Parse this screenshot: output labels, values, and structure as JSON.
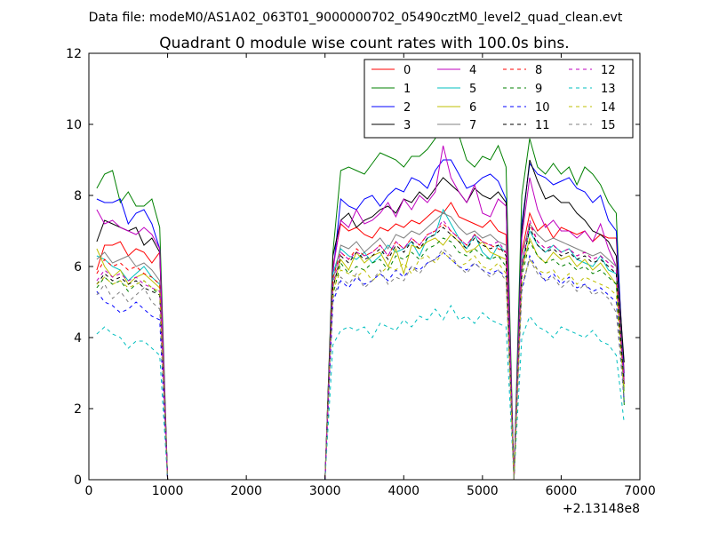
{
  "figure": {
    "suptitle": "Data file: modeM0/AS1A02_063T01_9000000702_05490cztM0_level2_quad_clean.evt",
    "x_offset_label": "+2.13148e8"
  },
  "chart_data": {
    "type": "line",
    "title": "Quadrant 0 module wise count rates with 100.0s bins.",
    "xlabel": "",
    "ylabel": "",
    "xlim": [
      0,
      7000
    ],
    "ylim": [
      0,
      12
    ],
    "xticks": [
      0,
      1000,
      2000,
      3000,
      4000,
      5000,
      6000,
      7000
    ],
    "yticks": [
      0,
      2,
      4,
      6,
      8,
      10,
      12
    ],
    "grid": false,
    "legend": "top-right",
    "x": [
      100,
      200,
      300,
      400,
      500,
      600,
      700,
      800,
      900,
      1000,
      1100,
      1200,
      1300,
      1400,
      1500,
      1600,
      1700,
      1800,
      1900,
      2000,
      2100,
      2200,
      2300,
      2400,
      2500,
      2600,
      2700,
      2800,
      2900,
      3000,
      3100,
      3200,
      3300,
      3400,
      3500,
      3600,
      3700,
      3800,
      3900,
      4000,
      4100,
      4200,
      4300,
      4400,
      4500,
      4600,
      4700,
      4800,
      4900,
      5000,
      5100,
      5200,
      5300,
      5400,
      5500,
      5600,
      5700,
      5800,
      5900,
      6000,
      6100,
      6200,
      6300,
      6400,
      6500,
      6600,
      6700,
      6800
    ],
    "series": [
      {
        "name": "0",
        "color": "#ff0000",
        "dash": false,
        "values": [
          5.9,
          6.6,
          6.6,
          6.7,
          6.3,
          6.5,
          6.4,
          6.1,
          6.4,
          0,
          0,
          0,
          0,
          0,
          0,
          0,
          0,
          0,
          0,
          0,
          0,
          0,
          0,
          0,
          0,
          0,
          0,
          0,
          0,
          0,
          6.0,
          7.2,
          7.0,
          7.1,
          6.9,
          6.8,
          7.1,
          7.0,
          7.2,
          7.1,
          7.3,
          7.2,
          7.4,
          7.6,
          7.5,
          7.8,
          7.4,
          7.3,
          7.2,
          7.1,
          7.3,
          7.0,
          6.9,
          0,
          6.4,
          7.5,
          7.0,
          7.2,
          6.8,
          7.1,
          7.0,
          6.9,
          7.0,
          6.7,
          6.9,
          6.8,
          6.8,
          3.0
        ]
      },
      {
        "name": "1",
        "color": "#008000",
        "dash": false,
        "values": [
          8.2,
          8.6,
          8.7,
          7.8,
          8.1,
          7.7,
          7.7,
          7.9,
          7.1,
          0,
          0,
          0,
          0,
          0,
          0,
          0,
          0,
          0,
          0,
          0,
          0,
          0,
          0,
          0,
          0,
          0,
          0,
          0,
          0,
          0,
          6.4,
          8.7,
          8.8,
          8.7,
          8.6,
          8.9,
          9.2,
          9.1,
          9.0,
          8.8,
          9.1,
          9.1,
          9.3,
          9.6,
          10.7,
          10.3,
          9.7,
          9.0,
          8.8,
          9.1,
          9.0,
          9.4,
          8.8,
          0,
          8.0,
          9.6,
          8.8,
          8.6,
          8.9,
          8.6,
          8.8,
          8.3,
          8.8,
          8.6,
          8.3,
          7.8,
          7.5,
          2.1
        ]
      },
      {
        "name": "2",
        "color": "#0000ff",
        "dash": false,
        "values": [
          7.9,
          7.8,
          7.8,
          7.9,
          7.2,
          7.5,
          7.6,
          7.2,
          6.5,
          0,
          0,
          0,
          0,
          0,
          0,
          0,
          0,
          0,
          0,
          0,
          0,
          0,
          0,
          0,
          0,
          0,
          0,
          0,
          0,
          0,
          5.8,
          7.9,
          7.7,
          7.6,
          7.9,
          8.0,
          7.7,
          8.0,
          8.2,
          8.1,
          8.5,
          8.4,
          8.2,
          8.7,
          9.0,
          9.0,
          8.6,
          8.2,
          8.3,
          8.5,
          8.6,
          8.4,
          7.9,
          0,
          7.2,
          8.9,
          8.6,
          8.5,
          8.3,
          8.4,
          8.5,
          8.2,
          8.1,
          7.8,
          8.0,
          7.3,
          7.0,
          2.9
        ]
      },
      {
        "name": "3",
        "color": "#000000",
        "dash": false,
        "values": [
          6.7,
          7.3,
          7.2,
          7.1,
          7.0,
          7.1,
          6.6,
          6.8,
          6.4,
          0,
          0,
          0,
          0,
          0,
          0,
          0,
          0,
          0,
          0,
          0,
          0,
          0,
          0,
          0,
          0,
          0,
          0,
          0,
          0,
          0,
          6.3,
          7.3,
          7.5,
          7.1,
          7.3,
          7.4,
          7.6,
          7.7,
          7.5,
          7.9,
          7.8,
          8.1,
          7.9,
          8.2,
          8.5,
          8.3,
          8.1,
          7.8,
          8.2,
          8.0,
          7.9,
          8.1,
          7.8,
          0,
          7.0,
          9.0,
          8.4,
          7.9,
          8.0,
          7.8,
          7.8,
          7.5,
          7.3,
          7.0,
          6.9,
          6.7,
          6.3,
          3.3
        ]
      },
      {
        "name": "4",
        "color": "#bf00bf",
        "dash": false,
        "values": [
          7.6,
          7.2,
          7.3,
          7.1,
          7.0,
          6.9,
          7.1,
          6.9,
          6.5,
          0,
          0,
          0,
          0,
          0,
          0,
          0,
          0,
          0,
          0,
          0,
          0,
          0,
          0,
          0,
          0,
          0,
          0,
          0,
          0,
          0,
          5.9,
          7.3,
          7.1,
          7.6,
          7.2,
          7.3,
          7.5,
          7.8,
          7.4,
          7.9,
          7.6,
          8.0,
          7.8,
          8.1,
          9.4,
          8.5,
          8.1,
          7.8,
          8.3,
          7.5,
          7.4,
          7.9,
          7.7,
          0,
          6.8,
          8.5,
          7.6,
          7.1,
          7.3,
          7.0,
          7.0,
          6.8,
          7.0,
          6.7,
          7.2,
          6.5,
          6.0,
          2.7
        ]
      },
      {
        "name": "5",
        "color": "#00bfbf",
        "dash": false,
        "values": [
          6.3,
          6.2,
          6.0,
          5.9,
          5.6,
          5.8,
          6.0,
          5.7,
          5.5,
          0,
          0,
          0,
          0,
          0,
          0,
          0,
          0,
          0,
          0,
          0,
          0,
          0,
          0,
          0,
          0,
          0,
          0,
          0,
          0,
          0,
          5.8,
          6.5,
          6.3,
          6.2,
          6.4,
          6.1,
          6.3,
          6.6,
          6.4,
          6.5,
          6.7,
          6.3,
          6.8,
          6.9,
          7.6,
          7.2,
          6.8,
          6.5,
          6.9,
          6.4,
          6.2,
          6.6,
          6.4,
          0,
          6.1,
          7.0,
          6.6,
          6.4,
          6.6,
          6.4,
          6.5,
          6.2,
          6.1,
          6.0,
          6.3,
          5.9,
          5.8,
          2.5
        ]
      },
      {
        "name": "6",
        "color": "#bfbf00",
        "dash": false,
        "values": [
          6.5,
          6.0,
          5.7,
          5.9,
          5.5,
          5.7,
          5.8,
          5.6,
          5.4,
          0,
          0,
          0,
          0,
          0,
          0,
          0,
          0,
          0,
          0,
          0,
          0,
          0,
          0,
          0,
          0,
          0,
          0,
          0,
          0,
          0,
          5.4,
          6.2,
          5.9,
          6.4,
          6.1,
          6.3,
          6.4,
          6.0,
          6.5,
          5.8,
          6.6,
          6.5,
          6.7,
          6.8,
          6.6,
          6.9,
          6.7,
          6.4,
          6.5,
          6.7,
          6.4,
          6.3,
          6.2,
          0,
          5.9,
          6.8,
          6.3,
          6.1,
          6.4,
          6.2,
          6.3,
          6.0,
          6.2,
          5.9,
          6.1,
          5.8,
          5.5,
          2.6
        ]
      },
      {
        "name": "7",
        "color": "#808080",
        "dash": false,
        "values": [
          6.2,
          6.4,
          6.1,
          6.2,
          6.3,
          6.0,
          6.1,
          5.9,
          5.6,
          0,
          0,
          0,
          0,
          0,
          0,
          0,
          0,
          0,
          0,
          0,
          0,
          0,
          0,
          0,
          0,
          0,
          0,
          0,
          0,
          0,
          5.6,
          6.6,
          6.5,
          6.7,
          6.4,
          6.6,
          6.8,
          6.5,
          6.9,
          6.8,
          7.0,
          6.9,
          7.1,
          7.3,
          7.5,
          7.4,
          7.1,
          6.9,
          7.0,
          6.8,
          6.9,
          6.7,
          6.6,
          0,
          6.3,
          7.2,
          6.9,
          6.7,
          6.8,
          6.7,
          6.6,
          6.5,
          6.4,
          6.3,
          6.4,
          6.2,
          6.0,
          2.8
        ]
      },
      {
        "name": "8",
        "color": "#ff0000",
        "dash": true,
        "values": [
          5.8,
          6.2,
          6.0,
          6.1,
          5.9,
          6.0,
          5.8,
          5.7,
          5.5,
          0,
          0,
          0,
          0,
          0,
          0,
          0,
          0,
          0,
          0,
          0,
          0,
          0,
          0,
          0,
          0,
          0,
          0,
          0,
          0,
          0,
          5.7,
          6.4,
          6.2,
          6.5,
          6.3,
          6.4,
          6.6,
          6.3,
          6.7,
          6.5,
          6.8,
          6.6,
          6.9,
          7.0,
          7.2,
          7.0,
          6.8,
          6.6,
          6.9,
          6.7,
          6.6,
          6.5,
          6.4,
          0,
          6.0,
          7.2,
          6.7,
          6.5,
          6.6,
          6.4,
          6.5,
          6.3,
          6.4,
          6.2,
          6.3,
          6.1,
          5.9,
          2.7
        ]
      },
      {
        "name": "9",
        "color": "#008000",
        "dash": true,
        "values": [
          5.4,
          5.7,
          5.5,
          5.6,
          5.3,
          5.5,
          5.6,
          5.4,
          5.2,
          0,
          0,
          0,
          0,
          0,
          0,
          0,
          0,
          0,
          0,
          0,
          0,
          0,
          0,
          0,
          0,
          0,
          0,
          0,
          0,
          0,
          5.2,
          6.1,
          5.8,
          6.0,
          5.9,
          6.1,
          6.2,
          5.9,
          6.3,
          6.2,
          6.4,
          6.2,
          6.5,
          6.6,
          6.8,
          6.7,
          6.4,
          6.3,
          6.5,
          6.3,
          6.2,
          6.3,
          6.0,
          0,
          5.7,
          6.7,
          6.3,
          6.1,
          6.2,
          6.0,
          6.1,
          5.9,
          6.0,
          5.8,
          5.9,
          5.7,
          5.5,
          2.4
        ]
      },
      {
        "name": "10",
        "color": "#0000ff",
        "dash": true,
        "values": [
          5.3,
          5.0,
          4.9,
          4.7,
          4.8,
          5.0,
          4.8,
          4.6,
          4.5,
          0,
          0,
          0,
          0,
          0,
          0,
          0,
          0,
          0,
          0,
          0,
          0,
          0,
          0,
          0,
          0,
          0,
          0,
          0,
          0,
          0,
          5.0,
          5.6,
          5.4,
          5.7,
          5.5,
          5.6,
          5.8,
          5.6,
          5.9,
          5.7,
          6.0,
          5.9,
          6.1,
          6.2,
          6.4,
          6.2,
          6.0,
          5.9,
          6.1,
          5.9,
          5.8,
          5.9,
          5.7,
          0,
          5.3,
          6.3,
          5.9,
          5.6,
          5.8,
          5.5,
          5.7,
          5.4,
          5.5,
          5.3,
          5.4,
          5.2,
          5.0,
          2.2
        ]
      },
      {
        "name": "11",
        "color": "#000000",
        "dash": true,
        "values": [
          5.5,
          5.8,
          5.6,
          5.7,
          5.5,
          5.6,
          5.4,
          5.3,
          5.2,
          0,
          0,
          0,
          0,
          0,
          0,
          0,
          0,
          0,
          0,
          0,
          0,
          0,
          0,
          0,
          0,
          0,
          0,
          0,
          0,
          0,
          5.4,
          6.3,
          6.1,
          6.4,
          6.2,
          6.3,
          6.5,
          6.2,
          6.6,
          6.4,
          6.7,
          6.5,
          6.8,
          6.9,
          7.1,
          6.9,
          6.7,
          6.5,
          6.8,
          6.6,
          6.5,
          6.6,
          6.3,
          0,
          5.9,
          7.1,
          6.6,
          6.4,
          6.5,
          6.3,
          6.4,
          6.2,
          6.3,
          6.1,
          6.2,
          6.0,
          5.8,
          2.6
        ]
      },
      {
        "name": "12",
        "color": "#bf00bf",
        "dash": true,
        "values": [
          5.6,
          5.9,
          5.7,
          5.8,
          5.6,
          5.7,
          5.5,
          5.4,
          5.3,
          0,
          0,
          0,
          0,
          0,
          0,
          0,
          0,
          0,
          0,
          0,
          0,
          0,
          0,
          0,
          0,
          0,
          0,
          0,
          0,
          0,
          5.5,
          6.4,
          6.2,
          6.4,
          6.3,
          6.4,
          6.6,
          6.3,
          6.7,
          6.5,
          6.8,
          6.6,
          6.9,
          7.0,
          7.3,
          7.0,
          6.8,
          6.6,
          6.9,
          6.7,
          6.6,
          6.7,
          6.4,
          0,
          6.0,
          7.3,
          6.7,
          6.5,
          6.6,
          6.4,
          6.5,
          6.3,
          6.4,
          6.2,
          6.3,
          6.1,
          5.9,
          2.7
        ]
      },
      {
        "name": "13",
        "color": "#00bfbf",
        "dash": true,
        "values": [
          4.1,
          4.3,
          4.1,
          4.0,
          3.7,
          3.9,
          3.9,
          3.7,
          3.5,
          0,
          0,
          0,
          0,
          0,
          0,
          0,
          0,
          0,
          0,
          0,
          0,
          0,
          0,
          0,
          0,
          0,
          0,
          0,
          0,
          0,
          3.8,
          4.2,
          4.3,
          4.2,
          4.3,
          4.0,
          4.4,
          4.3,
          4.2,
          4.5,
          4.3,
          4.6,
          4.5,
          4.8,
          4.5,
          4.9,
          4.5,
          4.6,
          4.4,
          4.7,
          4.5,
          4.4,
          4.3,
          0,
          4.0,
          4.6,
          4.3,
          4.2,
          4.0,
          4.3,
          4.2,
          4.1,
          4.0,
          4.2,
          3.9,
          3.8,
          3.5,
          1.6
        ]
      },
      {
        "name": "14",
        "color": "#bfbf00",
        "dash": true,
        "values": [
          5.5,
          5.7,
          5.5,
          5.6,
          5.4,
          5.5,
          5.6,
          5.4,
          5.3,
          0,
          0,
          0,
          0,
          0,
          0,
          0,
          0,
          0,
          0,
          0,
          0,
          0,
          0,
          0,
          0,
          0,
          0,
          0,
          0,
          0,
          5.3,
          5.9,
          5.8,
          5.7,
          5.9,
          5.6,
          5.8,
          6.0,
          5.9,
          6.1,
          5.8,
          6.2,
          6.3,
          6.1,
          6.4,
          6.2,
          6.0,
          6.1,
          6.3,
          6.0,
          5.9,
          6.1,
          5.8,
          0,
          5.5,
          6.2,
          5.9,
          5.8,
          5.9,
          5.6,
          5.8,
          5.5,
          5.7,
          5.6,
          5.5,
          5.4,
          5.2,
          2.4
        ]
      },
      {
        "name": "15",
        "color": "#808080",
        "dash": true,
        "values": [
          5.2,
          5.5,
          5.1,
          5.3,
          5.0,
          5.2,
          5.4,
          5.0,
          4.8,
          0,
          0,
          0,
          0,
          0,
          0,
          0,
          0,
          0,
          0,
          0,
          0,
          0,
          0,
          0,
          0,
          0,
          0,
          0,
          0,
          0,
          5.1,
          5.7,
          5.5,
          5.8,
          5.4,
          5.6,
          5.9,
          5.5,
          5.7,
          5.6,
          6.0,
          5.8,
          6.1,
          6.2,
          6.5,
          6.3,
          6.0,
          5.8,
          6.1,
          5.9,
          5.7,
          5.9,
          5.6,
          0,
          5.4,
          6.2,
          5.8,
          5.6,
          5.7,
          5.4,
          5.6,
          5.3,
          5.5,
          5.2,
          5.3,
          5.1,
          4.7,
          2.3
        ]
      }
    ]
  }
}
